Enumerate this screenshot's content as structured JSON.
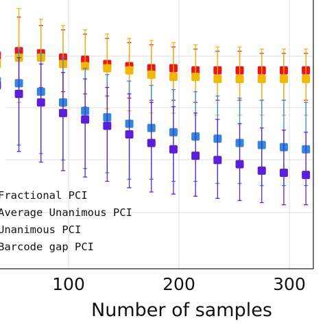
{
  "chart_data": {
    "type": "scatter",
    "xlabel": "Number of samples",
    "ylabel": "",
    "x_ticks": [
      100,
      200,
      300
    ],
    "xlim": [
      45,
      318
    ],
    "ylim": [
      0.45,
      1.08
    ],
    "grid": true,
    "legend_position": "bottom-left",
    "x": [
      35,
      55,
      75,
      95,
      115,
      135,
      155,
      175,
      195,
      215,
      235,
      255,
      275,
      295,
      315
    ],
    "series": [
      {
        "name": "Fractional PCI",
        "color": "#e8151c",
        "marker": "square",
        "values": [
          0.95,
          0.96,
          0.955,
          0.945,
          0.94,
          0.93,
          0.925,
          0.92,
          0.92,
          0.915,
          0.915,
          0.915,
          0.915,
          0.915,
          0.915
        ],
        "err_low": [
          0.88,
          0.88,
          0.875,
          0.865,
          0.86,
          0.855,
          0.85,
          0.845,
          0.845,
          0.84,
          0.845,
          0.845,
          0.845,
          0.845,
          0.845
        ],
        "err_high": [
          1.04,
          1.04,
          1.02,
          1.01,
          1.0,
          0.99,
          0.98,
          0.975,
          0.97,
          0.965,
          0.96,
          0.96,
          0.955,
          0.955,
          0.955
        ]
      },
      {
        "name": "Average Unanimous PCI",
        "color": "#f2b705",
        "marker": "square",
        "values": [
          0.93,
          0.945,
          0.945,
          0.93,
          0.925,
          0.92,
          0.915,
          0.905,
          0.9,
          0.9,
          0.895,
          0.895,
          0.895,
          0.895,
          0.895
        ],
        "err_low": [
          0.84,
          0.84,
          0.84,
          0.83,
          0.83,
          0.825,
          0.82,
          0.815,
          0.815,
          0.81,
          0.81,
          0.81,
          0.81,
          0.81,
          0.81
        ],
        "err_high": [
          1.06,
          1.06,
          1.035,
          1.02,
          1.01,
          1.0,
          0.99,
          0.985,
          0.98,
          0.975,
          0.97,
          0.97,
          0.965,
          0.965,
          0.965
        ]
      },
      {
        "name": "Unanimous PCI",
        "color": "#2f88d8",
        "marker": "square",
        "values": [
          0.89,
          0.885,
          0.865,
          0.84,
          0.82,
          0.805,
          0.79,
          0.78,
          0.77,
          0.76,
          0.755,
          0.745,
          0.74,
          0.735,
          0.73
        ],
        "err_low": [
          0.75,
          0.74,
          0.72,
          0.705,
          0.685,
          0.675,
          0.66,
          0.66,
          0.655,
          0.655,
          0.65,
          0.65,
          0.645,
          0.645,
          0.645
        ],
        "err_high": [
          0.97,
          0.965,
          0.955,
          0.945,
          0.92,
          0.905,
          0.89,
          0.88,
          0.87,
          0.865,
          0.855,
          0.85,
          0.845,
          0.845,
          0.84
        ]
      },
      {
        "name": "Barcode gap PCI",
        "color": "#5a1fd6",
        "marker": "square",
        "values": [
          0.88,
          0.86,
          0.84,
          0.815,
          0.8,
          0.785,
          0.765,
          0.745,
          0.73,
          0.715,
          0.705,
          0.695,
          0.68,
          0.675,
          0.67
        ],
        "err_low": [
          0.73,
          0.725,
          0.7,
          0.68,
          0.665,
          0.655,
          0.64,
          0.63,
          0.625,
          0.62,
          0.615,
          0.61,
          0.605,
          0.6,
          0.6
        ],
        "err_high": [
          0.95,
          0.945,
          0.93,
          0.91,
          0.895,
          0.875,
          0.86,
          0.84,
          0.83,
          0.815,
          0.8,
          0.79,
          0.78,
          0.775,
          0.77
        ]
      }
    ]
  }
}
